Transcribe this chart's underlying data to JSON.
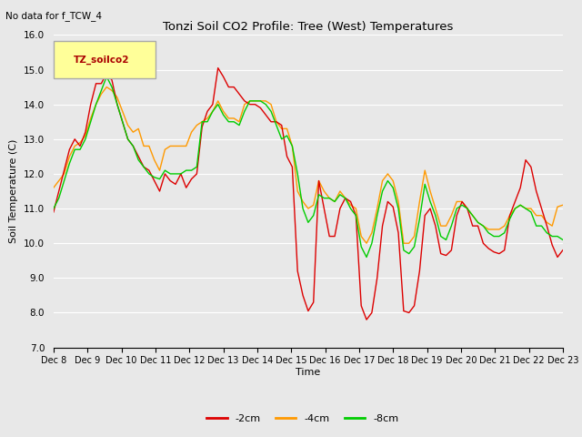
{
  "title": "Tonzi Soil CO2 Profile: Tree (West) Temperatures",
  "subtitle": "No data for f_TCW_4",
  "ylabel": "Soil Temperature (C)",
  "xlabel": "Time",
  "ylim": [
    7.0,
    16.0
  ],
  "yticks": [
    7.0,
    8.0,
    9.0,
    10.0,
    11.0,
    12.0,
    13.0,
    14.0,
    15.0,
    16.0
  ],
  "xtick_labels": [
    "Dec 8",
    "Dec 9",
    "Dec 10",
    "Dec 11",
    "Dec 12",
    "Dec 13",
    "Dec 14",
    "Dec 15",
    "Dec 16",
    "Dec 17",
    "Dec 18",
    "Dec 19",
    "Dec 20",
    "Dec 21",
    "Dec 22",
    "Dec 23"
  ],
  "legend_label": "TZ_soilco2",
  "legend_box_color": "#ffff99",
  "legend_box_edge": "#aaaaaa",
  "colors": {
    "2cm": "#dd0000",
    "4cm": "#ff9900",
    "8cm": "#00cc00"
  },
  "bg_color": "#e8e8e8",
  "plot_bg_color": "#e8e8e8",
  "grid_color": "#ffffff",
  "series_2cm": [
    10.9,
    11.5,
    12.1,
    12.7,
    13.0,
    12.8,
    13.2,
    14.0,
    14.6,
    14.6,
    14.9,
    14.7,
    14.0,
    13.5,
    13.0,
    12.8,
    12.5,
    12.2,
    12.1,
    11.8,
    11.5,
    12.0,
    11.8,
    11.7,
    12.0,
    11.6,
    11.85,
    12.0,
    13.35,
    13.8,
    14.0,
    15.05,
    14.8,
    14.5,
    14.5,
    14.3,
    14.1,
    14.0,
    14.0,
    13.9,
    13.7,
    13.5,
    13.5,
    13.4,
    12.5,
    12.2,
    9.2,
    8.5,
    8.05,
    8.3,
    11.8,
    11.0,
    10.2,
    10.2,
    11.0,
    11.3,
    11.2,
    10.8,
    8.2,
    7.8,
    8.0,
    9.0,
    10.5,
    11.2,
    11.05,
    10.3,
    8.05,
    8.0,
    8.2,
    9.2,
    10.8,
    11.0,
    10.5,
    9.7,
    9.65,
    9.8,
    10.8,
    11.2,
    11.0,
    10.5,
    10.5,
    10.0,
    9.85,
    9.75,
    9.7,
    9.8,
    10.8,
    11.2,
    11.6,
    12.4,
    12.2,
    11.5,
    11.0,
    10.5,
    9.95,
    9.6,
    9.8
  ],
  "series_4cm": [
    11.6,
    11.8,
    12.0,
    12.5,
    12.8,
    12.9,
    13.1,
    13.6,
    14.0,
    14.3,
    14.5,
    14.4,
    14.2,
    13.8,
    13.4,
    13.2,
    13.3,
    12.8,
    12.8,
    12.4,
    12.1,
    12.7,
    12.8,
    12.8,
    12.8,
    12.8,
    13.2,
    13.4,
    13.5,
    13.6,
    13.8,
    14.1,
    13.8,
    13.6,
    13.6,
    13.5,
    14.0,
    14.1,
    14.1,
    14.1,
    14.1,
    14.0,
    13.5,
    13.3,
    13.3,
    12.8,
    11.5,
    11.2,
    11.0,
    11.1,
    11.8,
    11.5,
    11.3,
    11.2,
    11.5,
    11.3,
    11.1,
    11.0,
    10.2,
    10.0,
    10.3,
    11.0,
    11.8,
    12.0,
    11.8,
    11.2,
    10.0,
    10.0,
    10.2,
    11.2,
    12.1,
    11.5,
    11.0,
    10.5,
    10.5,
    10.8,
    11.2,
    11.2,
    11.0,
    10.8,
    10.6,
    10.5,
    10.4,
    10.4,
    10.4,
    10.5,
    10.8,
    11.0,
    11.1,
    11.0,
    11.0,
    10.8,
    10.8,
    10.6,
    10.5,
    11.05,
    11.1
  ],
  "series_8cm": [
    11.0,
    11.3,
    11.8,
    12.3,
    12.7,
    12.7,
    13.0,
    13.5,
    14.0,
    14.4,
    14.8,
    14.5,
    14.0,
    13.5,
    13.0,
    12.8,
    12.4,
    12.2,
    12.0,
    11.9,
    11.85,
    12.1,
    12.0,
    12.0,
    12.0,
    12.1,
    12.1,
    12.2,
    13.5,
    13.5,
    13.8,
    14.0,
    13.7,
    13.5,
    13.5,
    13.4,
    13.8,
    14.1,
    14.1,
    14.1,
    14.0,
    13.8,
    13.4,
    13.0,
    13.1,
    12.8,
    12.0,
    11.0,
    10.6,
    10.8,
    11.4,
    11.3,
    11.3,
    11.2,
    11.4,
    11.3,
    11.0,
    10.8,
    9.9,
    9.6,
    10.0,
    10.8,
    11.5,
    11.8,
    11.6,
    11.0,
    9.8,
    9.7,
    9.9,
    10.7,
    11.7,
    11.2,
    10.8,
    10.2,
    10.1,
    10.5,
    11.0,
    11.1,
    11.0,
    10.8,
    10.6,
    10.5,
    10.3,
    10.2,
    10.2,
    10.3,
    10.7,
    11.0,
    11.1,
    11.0,
    10.9,
    10.5,
    10.5,
    10.3,
    10.2,
    10.2,
    10.1
  ]
}
